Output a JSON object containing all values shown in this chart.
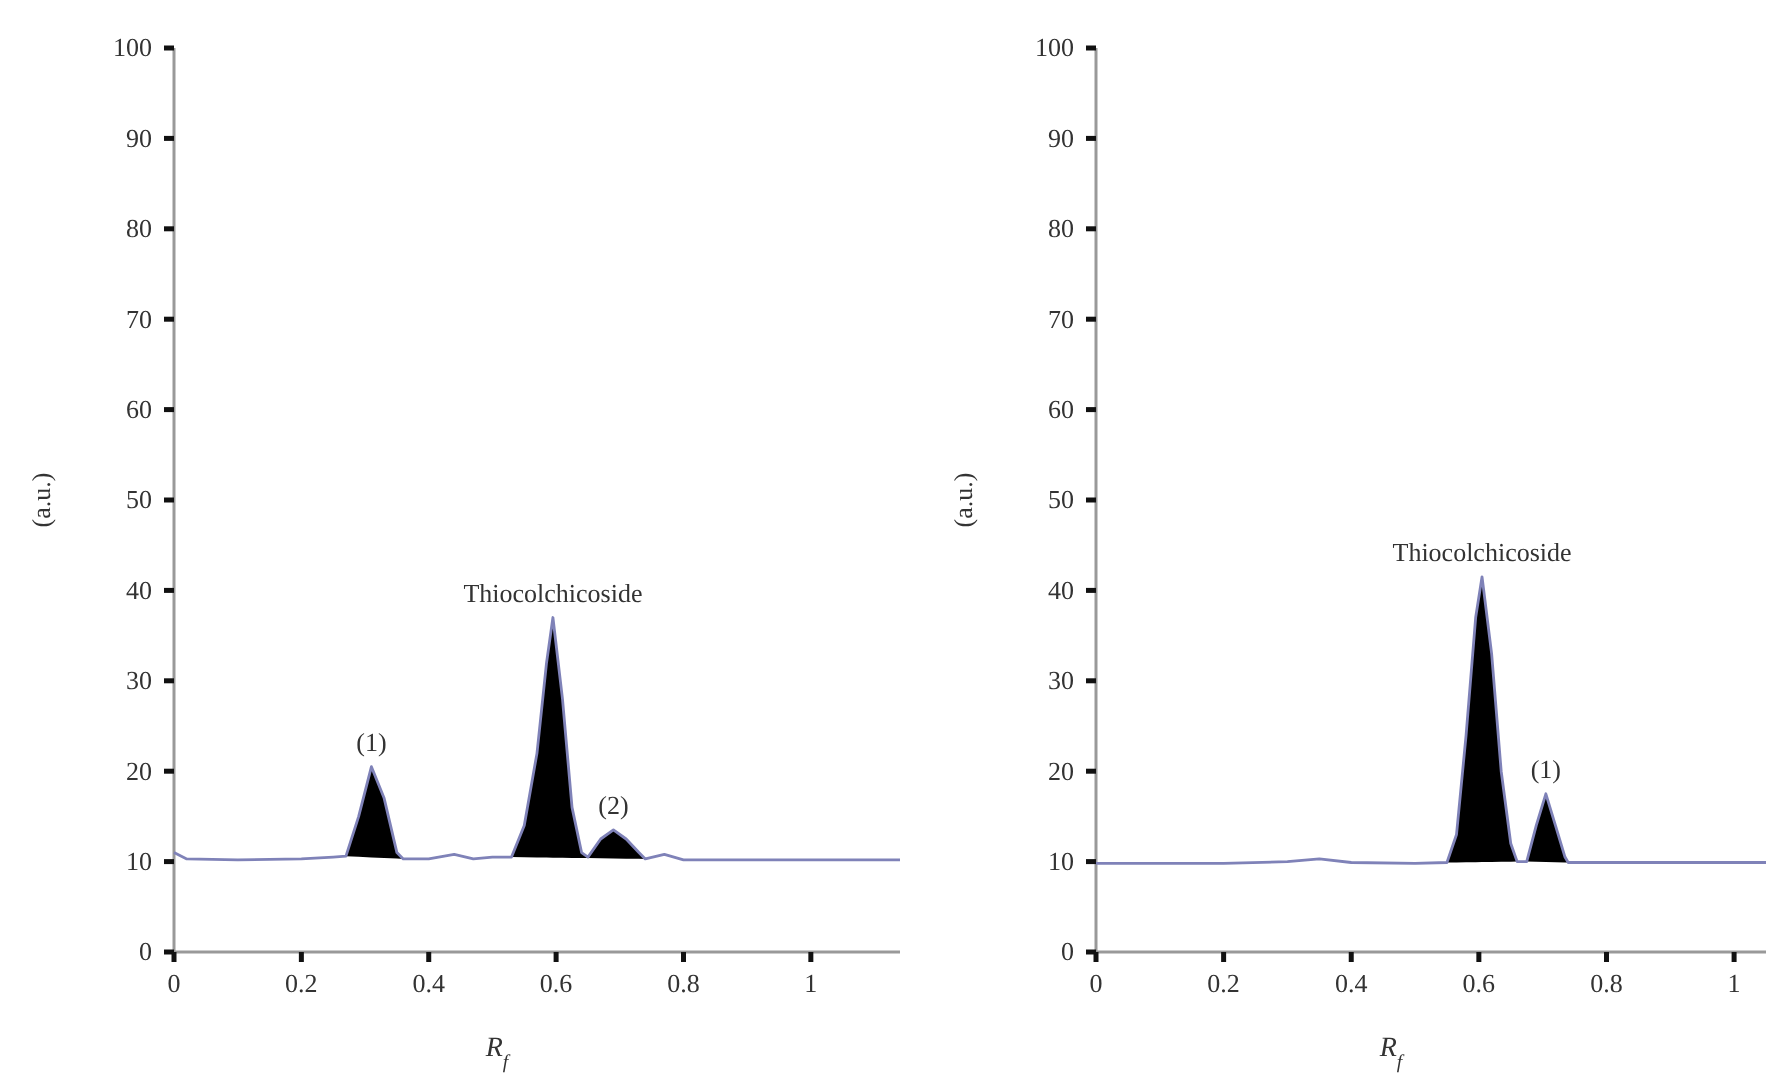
{
  "chart_data": [
    {
      "type": "line",
      "xlabel": "R$_{f}$",
      "ylabel": "(a.u.)",
      "xlim": [
        0,
        1.14
      ],
      "ylim": [
        0,
        100
      ],
      "xticks": [
        0,
        0.2,
        0.4,
        0.6,
        0.8,
        1
      ],
      "yticks": [
        0,
        10,
        20,
        30,
        40,
        50,
        60,
        70,
        80,
        90,
        100
      ],
      "grid": false,
      "marker": "none",
      "line_style": "solid",
      "series": [
        {
          "type": "area",
          "color": "#000000",
          "x": [
            0.27,
            0.29,
            0.31,
            0.33,
            0.35,
            0.36,
            null,
            0.53,
            0.55,
            0.57,
            0.585,
            0.595,
            0.61,
            0.625,
            0.64,
            0.65,
            0.67,
            0.69,
            0.71,
            0.73,
            0.74
          ],
          "values": [
            10.6,
            15,
            20.5,
            17,
            11,
            10.3,
            null,
            10.5,
            14,
            22,
            32,
            37,
            28,
            16,
            11,
            10.5,
            12.5,
            13.5,
            12.5,
            11,
            10.3
          ]
        },
        {
          "color": "#7f82b8",
          "x": [
            0,
            0.02,
            0.1,
            0.2,
            0.25,
            0.27,
            0.29,
            0.31,
            0.33,
            0.35,
            0.36,
            0.4,
            0.44,
            0.47,
            0.5,
            0.53,
            0.55,
            0.57,
            0.585,
            0.595,
            0.61,
            0.625,
            0.64,
            0.65,
            0.67,
            0.69,
            0.71,
            0.73,
            0.74,
            0.77,
            0.8,
            0.9,
            1.0,
            1.14
          ],
          "values": [
            11,
            10.3,
            10.2,
            10.3,
            10.5,
            10.6,
            15,
            20.5,
            17,
            11,
            10.3,
            10.3,
            10.8,
            10.3,
            10.5,
            10.5,
            14,
            22,
            32,
            37,
            28,
            16,
            11,
            10.5,
            12.5,
            13.5,
            12.5,
            11,
            10.3,
            10.8,
            10.2,
            10.2,
            10.2,
            10.2
          ]
        }
      ],
      "annotations": [
        {
          "text": "(1)",
          "x": 0.31,
          "y": 20.5
        },
        {
          "text": "Thiocolchicoside",
          "x": 0.595,
          "y": 37
        },
        {
          "text": "(2)",
          "x": 0.69,
          "y": 13.5
        }
      ]
    },
    {
      "type": "line",
      "xlabel": "R$_{f}$",
      "ylabel": "(a.u.)",
      "xlim": [
        0,
        1.05
      ],
      "ylim": [
        0,
        100
      ],
      "xticks": [
        0,
        0.2,
        0.4,
        0.6,
        0.8,
        1
      ],
      "yticks": [
        0,
        10,
        20,
        30,
        40,
        50,
        60,
        70,
        80,
        90,
        100
      ],
      "grid": false,
      "marker": "none",
      "line_style": "solid",
      "series": [
        {
          "type": "area",
          "color": "#000000",
          "x": [
            0.55,
            0.565,
            0.58,
            0.595,
            0.605,
            0.62,
            0.635,
            0.65,
            0.66,
            null,
            0.675,
            0.69,
            0.705,
            0.72,
            0.735,
            0.74
          ],
          "values": [
            9.9,
            13,
            24,
            37,
            41.5,
            33,
            20,
            12,
            10,
            null,
            10,
            14,
            17.5,
            14,
            10.5,
            9.9
          ]
        },
        {
          "color": "#7f82b8",
          "x": [
            0,
            0.1,
            0.2,
            0.3,
            0.35,
            0.4,
            0.5,
            0.55,
            0.565,
            0.58,
            0.595,
            0.605,
            0.62,
            0.635,
            0.65,
            0.66,
            0.675,
            0.69,
            0.705,
            0.72,
            0.735,
            0.74,
            0.8,
            0.9,
            1.05
          ],
          "values": [
            9.8,
            9.8,
            9.8,
            10,
            10.3,
            9.9,
            9.8,
            9.9,
            13,
            24,
            37,
            41.5,
            33,
            20,
            12,
            10,
            10,
            14,
            17.5,
            14,
            10.5,
            9.9,
            9.9,
            9.9,
            9.9
          ]
        }
      ],
      "annotations": [
        {
          "text": "Thiocolchicoside",
          "x": 0.605,
          "y": 41.5
        },
        {
          "text": "(1)",
          "x": 0.705,
          "y": 17.5
        }
      ]
    }
  ]
}
